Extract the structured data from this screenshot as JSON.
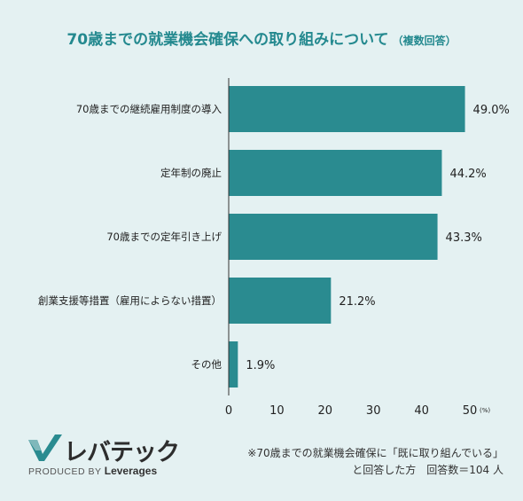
{
  "title": {
    "main": "70歳までの就業機会確保への取り組みについて",
    "sub": "（複数回答）"
  },
  "colors": {
    "bar": "#2a8b90",
    "title": "#24898f",
    "background": "#e4f1f2"
  },
  "chart_data": {
    "type": "bar",
    "orientation": "horizontal",
    "categories": [
      "70歳までの継続雇用制度の導入",
      "定年制の廃止",
      "70歳までの定年引き上げ",
      "創業支援等措置（雇用によらない措置）",
      "その他"
    ],
    "values": [
      49.0,
      44.2,
      43.3,
      21.2,
      1.9
    ],
    "value_labels": [
      "49.0%",
      "44.2%",
      "43.3%",
      "21.2%",
      "1.9%"
    ],
    "xticks": [
      "0",
      "10",
      "20",
      "30",
      "40",
      "50"
    ],
    "xunit": "(%)",
    "xlim": [
      0,
      50
    ]
  },
  "logo": {
    "name": "レバテック",
    "produced_by": "PRODUCED BY",
    "company": "Leverages"
  },
  "note": {
    "line1": "※70歳までの就業機会確保に「既に取り組んでいる」",
    "line2": "と回答した方　回答数＝104 人"
  }
}
